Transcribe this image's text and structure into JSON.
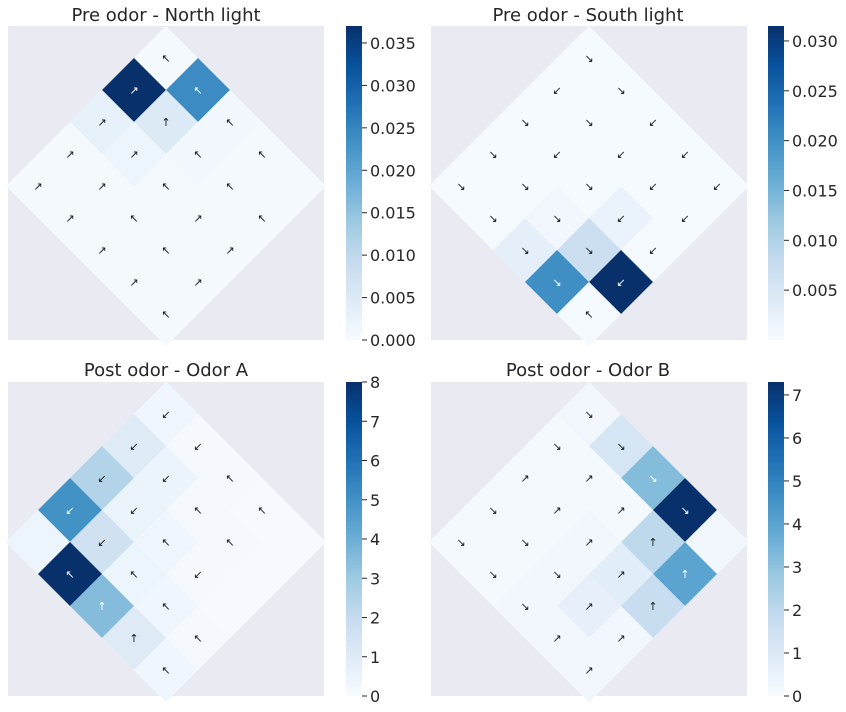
{
  "figure": {
    "colormap": "Blues",
    "panel_background": "#eaeaf2"
  },
  "chart_data": [
    {
      "type": "heatmap",
      "title": "Pre odor - North light",
      "colorbar": {
        "min": 0,
        "max": 0.037,
        "ticks": [
          "0.000",
          "0.005",
          "0.010",
          "0.015",
          "0.020",
          "0.025",
          "0.030",
          "0.035"
        ]
      },
      "cells": [
        {
          "u": 0,
          "v": 5,
          "value": 0.0005,
          "arrow": "↖"
        },
        {
          "u": 1,
          "v": 5,
          "value": 0.037,
          "arrow": "↗"
        },
        {
          "u": 0,
          "v": 4,
          "value": 0.024,
          "arrow": "↖"
        },
        {
          "u": 2,
          "v": 5,
          "value": 0.003,
          "arrow": "↗"
        },
        {
          "u": 1,
          "v": 4,
          "value": 0.005,
          "arrow": "↑"
        },
        {
          "u": 0,
          "v": 3,
          "value": 0.001,
          "arrow": "↖"
        },
        {
          "u": 3,
          "v": 5,
          "value": 0.0005,
          "arrow": "↗"
        },
        {
          "u": 2,
          "v": 4,
          "value": 0.002,
          "arrow": "↗"
        },
        {
          "u": 1,
          "v": 3,
          "value": 0.001,
          "arrow": "↖"
        },
        {
          "u": 0,
          "v": 2,
          "value": 0.0005,
          "arrow": "↖"
        },
        {
          "u": 4,
          "v": 5,
          "value": 0.0005,
          "arrow": "↗"
        },
        {
          "u": 3,
          "v": 4,
          "value": 0.0005,
          "arrow": "↗"
        },
        {
          "u": 2,
          "v": 3,
          "value": 0.0005,
          "arrow": "↖"
        },
        {
          "u": 1,
          "v": 2,
          "value": 0.0005,
          "arrow": "↖"
        },
        {
          "u": 0,
          "v": 1,
          "value": 0.0005,
          "arrow": ""
        },
        {
          "u": 4,
          "v": 4,
          "value": 0.0005,
          "arrow": "↗"
        },
        {
          "u": 3,
          "v": 3,
          "value": 0.0005,
          "arrow": "↖"
        },
        {
          "u": 2,
          "v": 2,
          "value": 0.0005,
          "arrow": "↗"
        },
        {
          "u": 1,
          "v": 1,
          "value": 0.0005,
          "arrow": "↖"
        },
        {
          "u": 4,
          "v": 3,
          "value": 0.0005,
          "arrow": "↗"
        },
        {
          "u": 3,
          "v": 2,
          "value": 0.0005,
          "arrow": "↖"
        },
        {
          "u": 2,
          "v": 1,
          "value": 0.0005,
          "arrow": "↗"
        },
        {
          "u": 4,
          "v": 2,
          "value": 0.0005,
          "arrow": "↗"
        },
        {
          "u": 3,
          "v": 1,
          "value": 0.0005,
          "arrow": "↗"
        },
        {
          "u": 4,
          "v": 1,
          "value": 0.0005,
          "arrow": "↖"
        }
      ]
    },
    {
      "type": "heatmap",
      "title": "Pre odor - South light",
      "colorbar": {
        "min": 0,
        "max": 0.0315,
        "ticks": [
          "0.005",
          "0.010",
          "0.015",
          "0.020",
          "0.025",
          "0.030"
        ]
      },
      "cells": [
        {
          "u": 0,
          "v": 5,
          "value": 0.0003,
          "arrow": "↘"
        },
        {
          "u": 1,
          "v": 5,
          "value": 0.0003,
          "arrow": "↙"
        },
        {
          "u": 0,
          "v": 4,
          "value": 0.0003,
          "arrow": "↘"
        },
        {
          "u": 2,
          "v": 5,
          "value": 0.0003,
          "arrow": "↘"
        },
        {
          "u": 1,
          "v": 4,
          "value": 0.0003,
          "arrow": "↘"
        },
        {
          "u": 0,
          "v": 3,
          "value": 0.0003,
          "arrow": "↙"
        },
        {
          "u": 3,
          "v": 5,
          "value": 0.0003,
          "arrow": "↘"
        },
        {
          "u": 2,
          "v": 4,
          "value": 0.0003,
          "arrow": "↙"
        },
        {
          "u": 1,
          "v": 3,
          "value": 0.0003,
          "arrow": "↙"
        },
        {
          "u": 0,
          "v": 2,
          "value": 0.0003,
          "arrow": "↙"
        },
        {
          "u": 4,
          "v": 5,
          "value": 0.0003,
          "arrow": "↘"
        },
        {
          "u": 3,
          "v": 4,
          "value": 0.0003,
          "arrow": "↘"
        },
        {
          "u": 2,
          "v": 3,
          "value": 0.0003,
          "arrow": "↘"
        },
        {
          "u": 1,
          "v": 2,
          "value": 0.0003,
          "arrow": "↙"
        },
        {
          "u": 0,
          "v": 1,
          "value": 0.0003,
          "arrow": "↙"
        },
        {
          "u": 4,
          "v": 4,
          "value": 0.0003,
          "arrow": "↘"
        },
        {
          "u": 3,
          "v": 3,
          "value": 0.001,
          "arrow": "↘"
        },
        {
          "u": 2,
          "v": 2,
          "value": 0.002,
          "arrow": "↙"
        },
        {
          "u": 1,
          "v": 1,
          "value": 0.0003,
          "arrow": "↙"
        },
        {
          "u": 4,
          "v": 3,
          "value": 0.003,
          "arrow": "↘"
        },
        {
          "u": 3,
          "v": 2,
          "value": 0.007,
          "arrow": "↘"
        },
        {
          "u": 2,
          "v": 1,
          "value": 0.0003,
          "arrow": "↙"
        },
        {
          "u": 4,
          "v": 2,
          "value": 0.02,
          "arrow": "↘"
        },
        {
          "u": 3,
          "v": 1,
          "value": 0.0315,
          "arrow": "↙"
        },
        {
          "u": 4,
          "v": 1,
          "value": 0.0003,
          "arrow": "↖"
        }
      ]
    },
    {
      "type": "heatmap",
      "title": "Post odor - Odor A",
      "colorbar": {
        "min": 0,
        "max": 8,
        "ticks": [
          "0",
          "1",
          "2",
          "3",
          "4",
          "5",
          "6",
          "7",
          "8"
        ]
      },
      "cells": [
        {
          "u": 0,
          "v": 5,
          "value": 0.3,
          "arrow": "↙"
        },
        {
          "u": 1,
          "v": 5,
          "value": 1,
          "arrow": "↙"
        },
        {
          "u": 0,
          "v": 4,
          "value": 0.1,
          "arrow": "↙"
        },
        {
          "u": 2,
          "v": 5,
          "value": 2.5,
          "arrow": "↙"
        },
        {
          "u": 1,
          "v": 4,
          "value": 0.5,
          "arrow": "↙"
        },
        {
          "u": 0,
          "v": 3,
          "value": 0.1,
          "arrow": "↖"
        },
        {
          "u": 3,
          "v": 5,
          "value": 5,
          "arrow": "↙"
        },
        {
          "u": 2,
          "v": 4,
          "value": 0.5,
          "arrow": "↙"
        },
        {
          "u": 1,
          "v": 3,
          "value": 0.1,
          "arrow": "↖"
        },
        {
          "u": 0,
          "v": 2,
          "value": 0.05,
          "arrow": "↖"
        },
        {
          "u": 4,
          "v": 5,
          "value": 0.4,
          "arrow": ""
        },
        {
          "u": 3,
          "v": 4,
          "value": 1.6,
          "arrow": "↙"
        },
        {
          "u": 2,
          "v": 3,
          "value": 0.3,
          "arrow": "↖"
        },
        {
          "u": 1,
          "v": 2,
          "value": 0.1,
          "arrow": "↖"
        },
        {
          "u": 0,
          "v": 1,
          "value": 0.05,
          "arrow": ""
        },
        {
          "u": 4,
          "v": 4,
          "value": 8,
          "arrow": "↖"
        },
        {
          "u": 3,
          "v": 3,
          "value": 0.4,
          "arrow": "↖"
        },
        {
          "u": 2,
          "v": 2,
          "value": 0.1,
          "arrow": "↙"
        },
        {
          "u": 1,
          "v": 1,
          "value": 0.05,
          "arrow": ""
        },
        {
          "u": 4,
          "v": 3,
          "value": 3.5,
          "arrow": "↑"
        },
        {
          "u": 3,
          "v": 2,
          "value": 0.3,
          "arrow": "↖"
        },
        {
          "u": 2,
          "v": 1,
          "value": 0.05,
          "arrow": ""
        },
        {
          "u": 4,
          "v": 2,
          "value": 1,
          "arrow": "↑"
        },
        {
          "u": 3,
          "v": 1,
          "value": 0.1,
          "arrow": "↖"
        },
        {
          "u": 4,
          "v": 1,
          "value": 0.3,
          "arrow": "↖"
        }
      ]
    },
    {
      "type": "heatmap",
      "title": "Post odor - Odor B",
      "colorbar": {
        "min": 0,
        "max": 7.3,
        "ticks": [
          "0",
          "1",
          "2",
          "3",
          "4",
          "5",
          "6",
          "7"
        ]
      },
      "cells": [
        {
          "u": 0,
          "v": 5,
          "value": 0.2,
          "arrow": "↘"
        },
        {
          "u": 1,
          "v": 5,
          "value": 0.1,
          "arrow": "↘"
        },
        {
          "u": 0,
          "v": 4,
          "value": 1.2,
          "arrow": "↘"
        },
        {
          "u": 2,
          "v": 5,
          "value": 0.1,
          "arrow": "↗"
        },
        {
          "u": 1,
          "v": 4,
          "value": 0.1,
          "arrow": "↗"
        },
        {
          "u": 0,
          "v": 3,
          "value": 3.2,
          "arrow": "↘"
        },
        {
          "u": 3,
          "v": 5,
          "value": 0.1,
          "arrow": "↘"
        },
        {
          "u": 2,
          "v": 4,
          "value": 0.1,
          "arrow": "↗"
        },
        {
          "u": 1,
          "v": 3,
          "value": 0.1,
          "arrow": "↗"
        },
        {
          "u": 0,
          "v": 2,
          "value": 7.3,
          "arrow": "↘"
        },
        {
          "u": 4,
          "v": 5,
          "value": 0.1,
          "arrow": "↘"
        },
        {
          "u": 3,
          "v": 4,
          "value": 0.1,
          "arrow": "↘"
        },
        {
          "u": 2,
          "v": 3,
          "value": 0.2,
          "arrow": "↗"
        },
        {
          "u": 1,
          "v": 2,
          "value": 2,
          "arrow": "↑"
        },
        {
          "u": 0,
          "v": 1,
          "value": 0.2,
          "arrow": ""
        },
        {
          "u": 4,
          "v": 4,
          "value": 0.1,
          "arrow": "↘"
        },
        {
          "u": 3,
          "v": 3,
          "value": 0.2,
          "arrow": "↘"
        },
        {
          "u": 2,
          "v": 2,
          "value": 0.8,
          "arrow": "↗"
        },
        {
          "u": 1,
          "v": 1,
          "value": 4,
          "arrow": "↑"
        },
        {
          "u": 4,
          "v": 3,
          "value": 0.2,
          "arrow": "↘"
        },
        {
          "u": 3,
          "v": 2,
          "value": 0.6,
          "arrow": "↗"
        },
        {
          "u": 2,
          "v": 1,
          "value": 1.7,
          "arrow": "↑"
        },
        {
          "u": 4,
          "v": 2,
          "value": 0.2,
          "arrow": "↗"
        },
        {
          "u": 3,
          "v": 1,
          "value": 0.2,
          "arrow": "↗"
        },
        {
          "u": 4,
          "v": 1,
          "value": 0.2,
          "arrow": "↗"
        }
      ]
    }
  ]
}
